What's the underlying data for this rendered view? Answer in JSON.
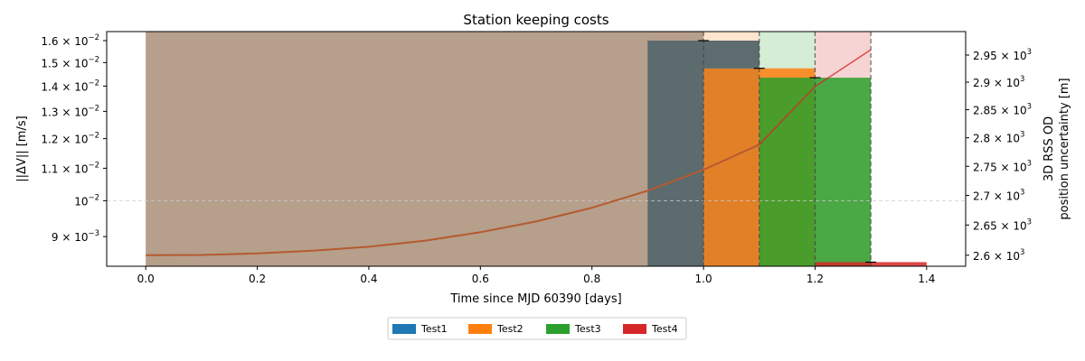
{
  "chart_data": {
    "type": "bar",
    "title": "Station keeping costs",
    "xlabel": "Time since MJD 60390 [days]",
    "ylabel": "||ΔV|| [m/s]",
    "ylabel_right": [
      "3D RSS OD",
      "position uncertainty [m]"
    ],
    "xlim": [
      -0.07,
      1.47
    ],
    "ylim": [
      0.00825,
      0.01643
    ],
    "ylim_right": [
      2582,
      2994
    ],
    "yscale": "log",
    "yscale_right": "log",
    "x_ticks": [
      "0.0",
      "0.2",
      "0.4",
      "0.6",
      "0.8",
      "1.0",
      "1.2",
      "1.4"
    ],
    "x_tick_values": [
      0,
      0.2,
      0.4,
      0.6,
      0.8,
      1.0,
      1.2,
      1.4
    ],
    "y_ticks_left": [
      {
        "value": 0.009,
        "mantissa": "9",
        "exp": "−3"
      },
      {
        "value": 0.01,
        "mantissa": "",
        "exp": "−2"
      },
      {
        "value": 0.011,
        "mantissa": "1.1",
        "exp": "−2"
      },
      {
        "value": 0.012,
        "mantissa": "1.2",
        "exp": "−2"
      },
      {
        "value": 0.013,
        "mantissa": "1.3",
        "exp": "−2"
      },
      {
        "value": 0.014,
        "mantissa": "1.4",
        "exp": "−2"
      },
      {
        "value": 0.015,
        "mantissa": "1.5",
        "exp": "−2"
      },
      {
        "value": 0.016,
        "mantissa": "1.6",
        "exp": "−2"
      }
    ],
    "y_ticks_right": [
      {
        "value": 2600,
        "mantissa": "2.6",
        "exp": "3"
      },
      {
        "value": 2650,
        "mantissa": "2.65",
        "exp": "3"
      },
      {
        "value": 2700,
        "mantissa": "2.7",
        "exp": "3"
      },
      {
        "value": 2750,
        "mantissa": "2.75",
        "exp": "3"
      },
      {
        "value": 2800,
        "mantissa": "2.8",
        "exp": "3"
      },
      {
        "value": 2850,
        "mantissa": "2.85",
        "exp": "3"
      },
      {
        "value": 2900,
        "mantissa": "2.9",
        "exp": "3"
      },
      {
        "value": 2950,
        "mantissa": "2.95",
        "exp": "3"
      }
    ],
    "series": [
      {
        "name": "Test1",
        "color": "#1f77b4",
        "window": [
          0.0,
          1.0
        ],
        "bar": [
          0.9,
          1.1
        ],
        "value": 0.016,
        "errorbar_x": 1.0
      },
      {
        "name": "Test2",
        "color": "#ff7f0e",
        "window": [
          1.0,
          1.1
        ],
        "bar": [
          1.0,
          1.2
        ],
        "value": 0.01475,
        "errorbar_x": 1.1
      },
      {
        "name": "Test3",
        "color": "#2ca02c",
        "window": [
          1.1,
          1.2
        ],
        "bar": [
          1.1,
          1.3
        ],
        "value": 0.01435,
        "errorbar_x": 1.2
      },
      {
        "name": "Test4",
        "color": "#d62728",
        "window": [
          1.2,
          1.3
        ],
        "bar": [
          1.2,
          1.4
        ],
        "value": 0.00835,
        "errorbar_x": 1.3
      }
    ],
    "window_edges": [
      1.0,
      1.1,
      1.2,
      1.3
    ],
    "uncertainty_curve": {
      "color": "#d62728",
      "x": [
        0.0,
        0.1,
        0.2,
        0.3,
        0.4,
        0.5,
        0.6,
        0.7,
        0.8,
        0.9,
        1.0,
        1.1,
        1.2,
        1.3
      ],
      "y": [
        2600,
        2600.5,
        2603,
        2607.5,
        2614,
        2624,
        2638,
        2656,
        2679,
        2708,
        2744,
        2788,
        2892,
        2960
      ]
    },
    "hline_left": 0.01,
    "legend": {
      "placement": "below",
      "entries": [
        "Test1",
        "Test2",
        "Test3",
        "Test4"
      ]
    }
  }
}
